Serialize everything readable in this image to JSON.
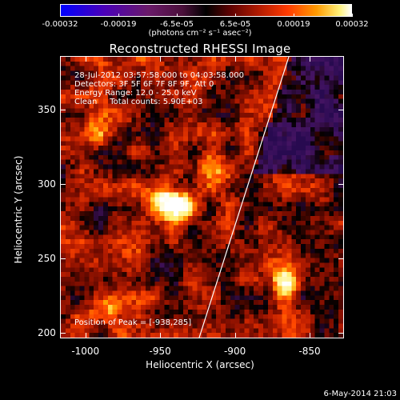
{
  "colorbar": {
    "tick_labels": [
      "-0.00032",
      "-0.00019",
      "-6.5e-05",
      "6.5e-05",
      "0.00019",
      "0.00032"
    ],
    "units_text": "(photons cm⁻² s⁻¹ asec⁻²)",
    "range": [
      -0.00032,
      0.00032
    ]
  },
  "chart_data": {
    "type": "heatmap",
    "title": "Reconstructed RHESSI Image",
    "xlabel": "Heliocentric X (arcsec)",
    "ylabel": "Heliocentric Y (arcsec)",
    "xlim": [
      -1017,
      -827
    ],
    "ylim": [
      196,
      386
    ],
    "x_ticks": [
      "-1000",
      "-950",
      "-900",
      "-850"
    ],
    "x_tick_values": [
      -1000,
      -950,
      -900,
      -850
    ],
    "y_ticks": [
      "200",
      "250",
      "300",
      "350"
    ],
    "y_tick_values": [
      200,
      250,
      300,
      350
    ],
    "peak": [
      -938,
      285
    ],
    "bright_sources": [
      {
        "x": -938,
        "y": 285,
        "level": 1.0
      },
      {
        "x": -950,
        "y": 292,
        "level": 0.85
      },
      {
        "x": -865,
        "y": 233,
        "level": 0.8
      },
      {
        "x": -988,
        "y": 215,
        "level": 0.6
      },
      {
        "x": -915,
        "y": 312,
        "level": 0.6
      },
      {
        "x": -995,
        "y": 335,
        "level": 0.45
      }
    ],
    "solar_limb": true
  },
  "info": {
    "time": "28-Jul-2012 03:57:58.000 to 04:03:58.000",
    "detectors": "Detectors: 3F 5F 6F 7F 8F 9F, Att 0",
    "energy": "Energy Range: 12.0 - 25.0 keV",
    "clean": "Clean     Total counts: 5.90E+03",
    "peak_text": "Position of Peak = [-938,285]"
  },
  "stamp": "6-May-2014 21:03"
}
